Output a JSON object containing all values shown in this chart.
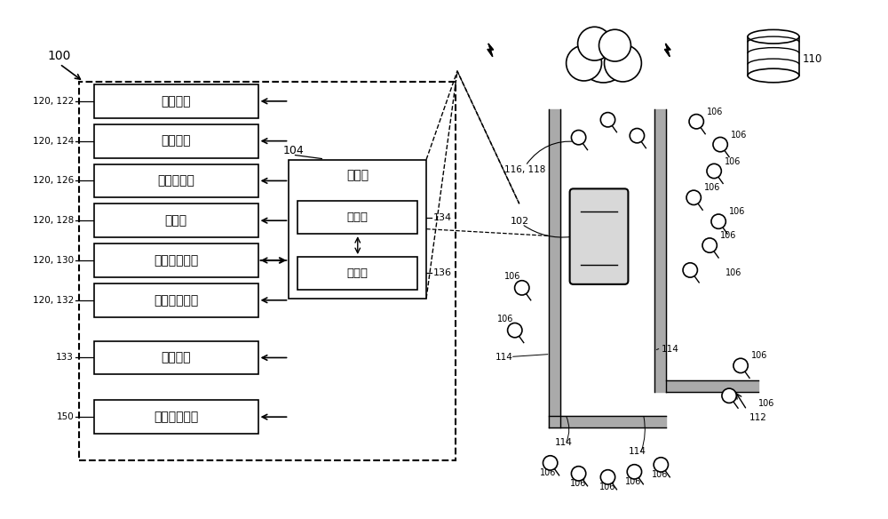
{
  "bg_color": "#ffffff",
  "sensor_box_labels": [
    "激光雷达",
    "微波雷达",
    "超声波雷达",
    "摄像头",
    "全球定位系统",
    "惯性测量单元",
    "通信设备",
    "自动驾驶模块"
  ],
  "sensor_side_labels": [
    "120, 122",
    "120, 124",
    "120, 126",
    "120, 128",
    "120, 130",
    "120, 132",
    "133",
    "150"
  ],
  "computer_label": "计算机",
  "processor_label": "处理器",
  "memory_label": "存储器"
}
